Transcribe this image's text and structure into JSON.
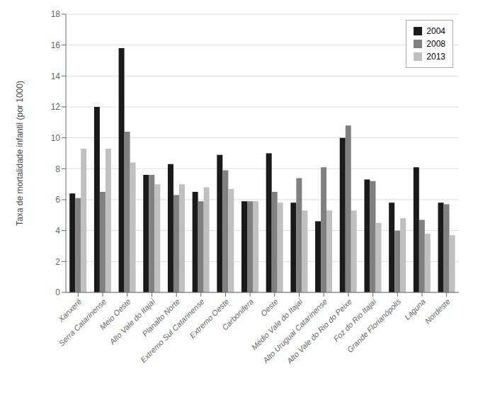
{
  "chart_data": {
    "type": "bar",
    "categories": [
      "Xanxerê",
      "Serra Catarinense",
      "Meio Oeste",
      "Alto Vale do Itajaí",
      "Planalto Norte",
      "Extremo Sul Catarinense",
      "Extremo Oeste",
      "Carbonifera",
      "Oeste",
      "Médio Vale do Itajaí",
      "Alto Uruguai Catarinense",
      "Alto Vale do Rio do Peixe",
      "Foz do Rio Itajaí",
      "Grande Florianópolis",
      "Laguna",
      "Nordeste"
    ],
    "series": [
      {
        "name": "2004",
        "color": "#1a1a1a",
        "values": [
          6.4,
          12.0,
          15.8,
          7.6,
          8.3,
          6.5,
          8.9,
          5.9,
          9.0,
          5.8,
          4.6,
          10.0,
          7.3,
          5.8,
          8.1,
          5.8
        ]
      },
      {
        "name": "2008",
        "color": "#808080",
        "values": [
          6.1,
          6.5,
          10.4,
          7.6,
          6.3,
          5.9,
          7.9,
          5.9,
          6.5,
          7.4,
          8.1,
          10.8,
          7.2,
          4.0,
          4.7,
          5.7
        ]
      },
      {
        "name": "2013",
        "color": "#c0c0c0",
        "values": [
          9.3,
          9.3,
          8.4,
          7.0,
          7.0,
          6.8,
          6.7,
          5.9,
          5.8,
          5.3,
          5.3,
          5.3,
          4.5,
          4.8,
          3.8,
          3.7
        ]
      }
    ],
    "ylabel": "Taxa de mortalidade infantil (por 1000)",
    "ylim": [
      0,
      18
    ],
    "yticks": [
      0,
      2,
      4,
      6,
      8,
      10,
      12,
      14,
      16,
      18
    ],
    "grid": true,
    "legend": "upper right"
  }
}
